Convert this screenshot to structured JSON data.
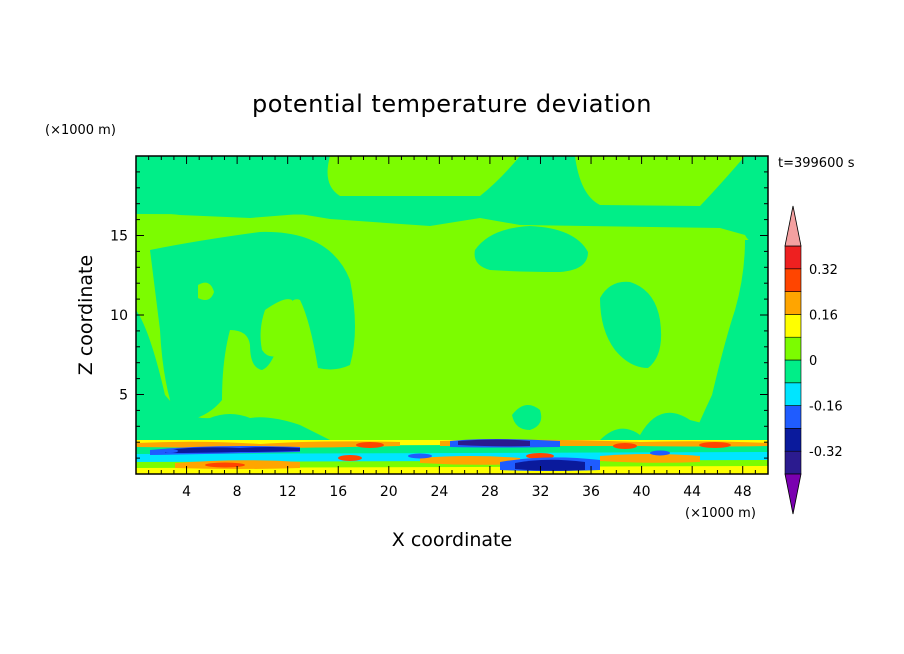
{
  "chart_data": {
    "type": "heatmap",
    "title": "potential temperature deviation",
    "xlabel": "X coordinate",
    "ylabel": "Z coordinate",
    "x_unit_label": "(×1000 m)",
    "y_unit_label": "(×1000 m)",
    "time_label": "t=399600 s",
    "xlim": [
      0,
      50
    ],
    "ylim": [
      0,
      20
    ],
    "x_ticks": [
      "4",
      "8",
      "12",
      "16",
      "20",
      "24",
      "28",
      "32",
      "36",
      "40",
      "44",
      "48"
    ],
    "y_ticks": [
      "5",
      "10",
      "15"
    ],
    "colorbar": {
      "levels": [
        -0.4,
        -0.32,
        -0.24,
        -0.16,
        -0.08,
        0,
        0.08,
        0.16,
        0.24,
        0.32,
        0.4
      ],
      "colors": [
        "#2b1b8f",
        "#0a1a9c",
        "#1f5cff",
        "#00e5ff",
        "#00ee88",
        "#7cfc00",
        "#ffff00",
        "#ffa500",
        "#ff4500",
        "#ee2020"
      ],
      "under_color": "#7a00b0",
      "over_color": "#f4a0a0",
      "tick_labels": [
        "0.32",
        "0.16",
        "0",
        "-0.16",
        "-0.32"
      ]
    },
    "fields": {
      "background_class": "0 to 0.08",
      "background_color": "#7cfc00",
      "negative_small_color": "#00ee88",
      "negative_mid_color": "#00e5ff",
      "negative_strong_color": "#0a1a9c",
      "positive_small_color": "#ffff00",
      "positive_mid_color": "#ffa500",
      "positive_strong_color": "#ff4500"
    }
  }
}
